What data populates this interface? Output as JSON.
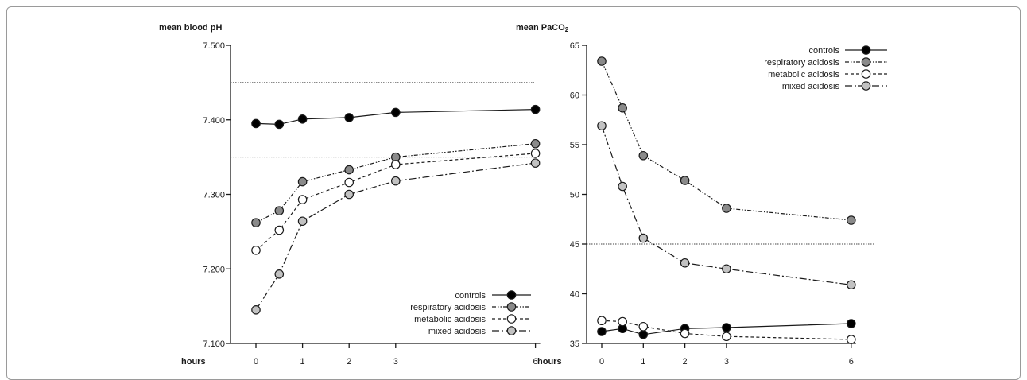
{
  "colors": {
    "controls": "#000000",
    "respiratory_acidosis": "#8a8a8a",
    "metabolic_acidosis": "#ffffff",
    "mixed_acidosis": "#c2c2c2",
    "line": "#1a1a1a",
    "reference_line": "#444444"
  },
  "chart_data": [
    {
      "type": "line",
      "ylabel": "mean blood pH",
      "xlabel": "hours",
      "x": [
        0,
        0.5,
        1,
        2,
        3,
        6
      ],
      "x_ticks": [
        "0",
        "1",
        "2",
        "3",
        "6"
      ],
      "x_tick_values": [
        0,
        1,
        2,
        3,
        6
      ],
      "y_ticks": [
        "7.500",
        "7.400",
        "7.300",
        "7.200",
        "7.100"
      ],
      "y_tick_values": [
        7.5,
        7.4,
        7.3,
        7.2,
        7.1
      ],
      "ylim": [
        7.1,
        7.5
      ],
      "reference_lines": [
        7.45,
        7.35
      ],
      "legend_position": "bottom-right",
      "series": [
        {
          "name": "controls",
          "values": [
            7.395,
            7.394,
            7.401,
            7.403,
            7.41,
            7.414
          ]
        },
        {
          "name": "respiratory acidosis",
          "values": [
            7.262,
            7.278,
            7.317,
            7.333,
            7.35,
            7.368
          ]
        },
        {
          "name": "metabolic acidosis",
          "values": [
            7.225,
            7.252,
            7.293,
            7.316,
            7.34,
            7.355
          ]
        },
        {
          "name": "mixed acidosis",
          "values": [
            7.145,
            7.193,
            7.264,
            7.3,
            7.318,
            7.342
          ]
        }
      ]
    },
    {
      "type": "line",
      "ylabel": "mean PaCO",
      "ylabel_sub": "2",
      "xlabel": "hours",
      "x": [
        0,
        0.5,
        1,
        2,
        3,
        6
      ],
      "x_ticks": [
        "0",
        "1",
        "2",
        "3",
        "6"
      ],
      "x_tick_values": [
        0,
        1,
        2,
        3,
        6
      ],
      "y_ticks": [
        "65",
        "60",
        "55",
        "50",
        "45",
        "40",
        "35"
      ],
      "y_tick_values": [
        65,
        60,
        55,
        50,
        45,
        40,
        35
      ],
      "ylim": [
        35,
        65
      ],
      "reference_lines": [
        45
      ],
      "legend_position": "top-right",
      "series": [
        {
          "name": "controls",
          "values": [
            36.2,
            36.5,
            35.9,
            36.5,
            36.6,
            37.0
          ]
        },
        {
          "name": "respiratory acidosis",
          "values": [
            63.4,
            58.7,
            53.9,
            51.4,
            48.6,
            47.4
          ]
        },
        {
          "name": "metabolic acidosis",
          "values": [
            37.3,
            37.2,
            36.7,
            36.0,
            35.7,
            35.4
          ]
        },
        {
          "name": "mixed acidosis",
          "values": [
            56.9,
            50.8,
            45.6,
            43.1,
            42.5,
            40.9
          ]
        }
      ]
    }
  ]
}
